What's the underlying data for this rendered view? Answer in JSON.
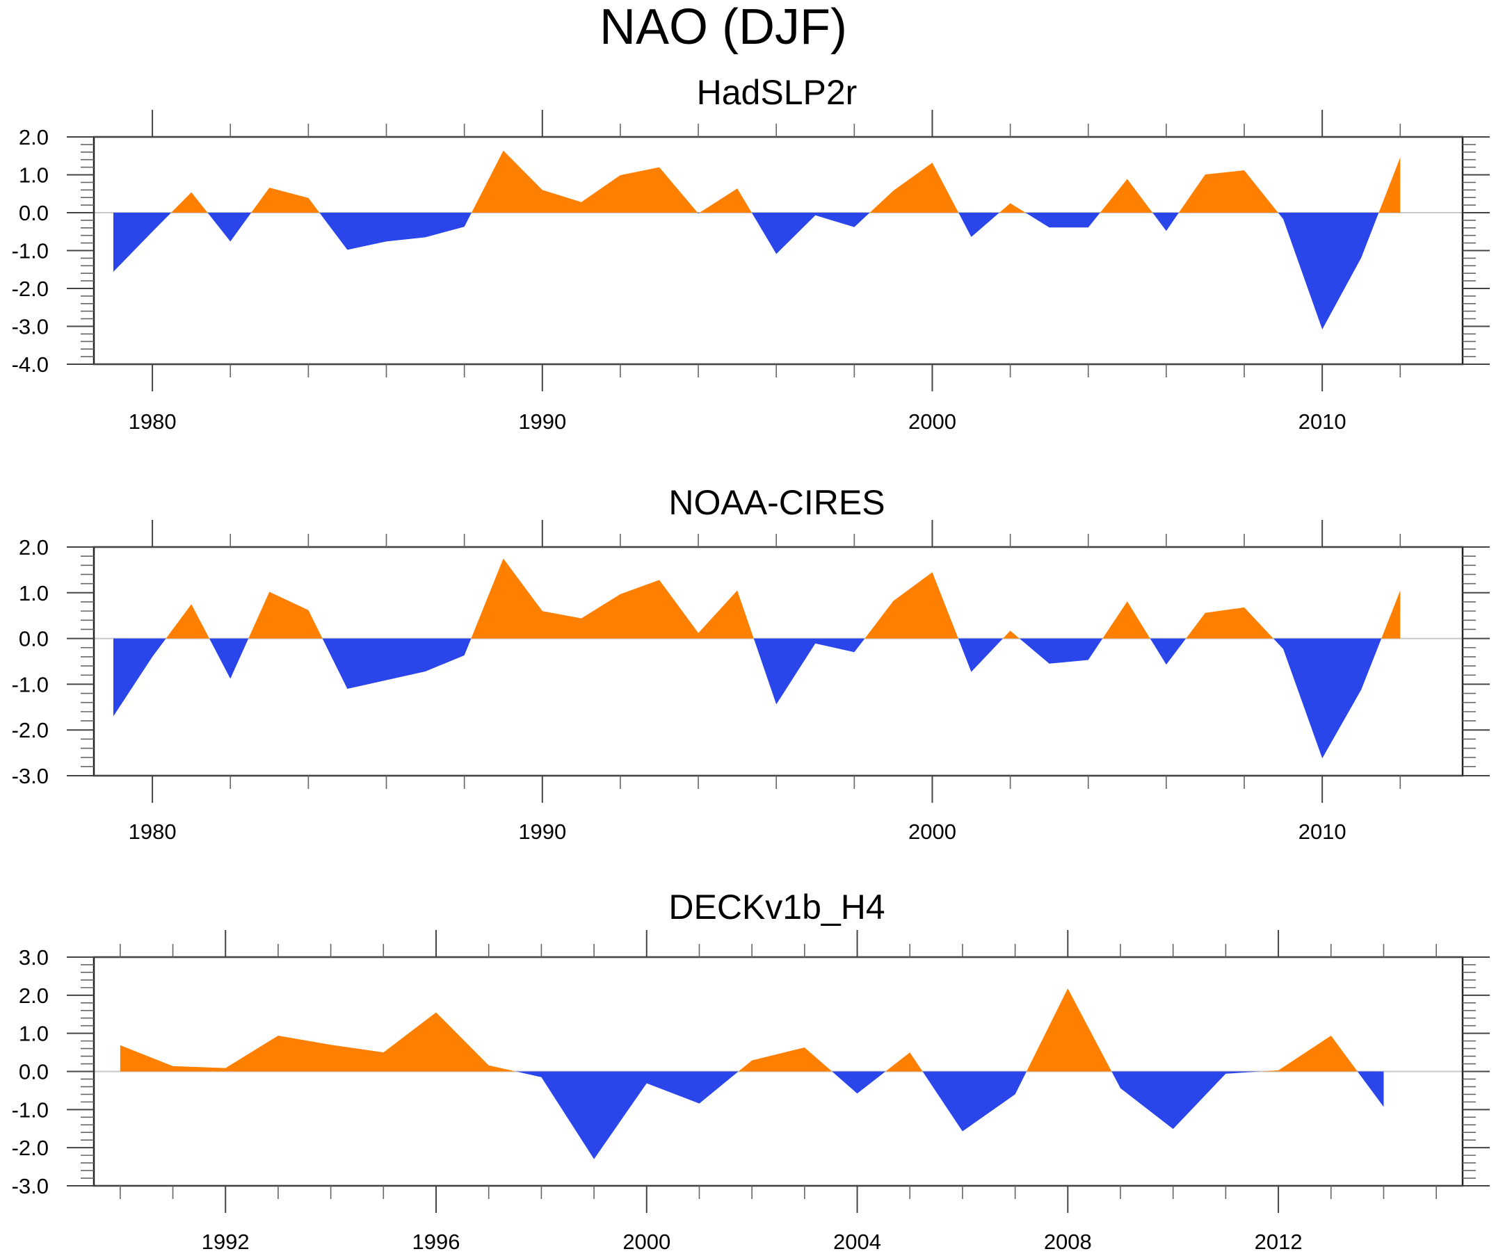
{
  "title": "NAO (DJF)",
  "colors": {
    "positive": "#FF8000",
    "negative": "#2A45EA"
  },
  "chart_data": [
    {
      "type": "area",
      "title": "HadSLP2r",
      "xlabel": "",
      "ylabel": "",
      "xlim": [
        1978.5,
        2013.6
      ],
      "ylim": [
        -4.0,
        2.0
      ],
      "yticks": [
        -4.0,
        -3.0,
        -2.0,
        -1.0,
        0.0,
        1.0,
        2.0
      ],
      "ytick_labels": [
        "-4.0",
        "-3.0",
        "-2.0",
        "-1.0",
        "0.0",
        "1.0",
        "2.0"
      ],
      "y_minor_step": 0.2,
      "xticks_major": [
        1980,
        1990,
        2000,
        2010
      ],
      "xtick_labels": [
        "1980",
        "1990",
        "2000",
        "2010"
      ],
      "x_minor_step": 2,
      "fill_above_zero": "positive",
      "fill_below_zero": "negative",
      "x": [
        1979,
        1980,
        1981,
        1982,
        1983,
        1984,
        1985,
        1986,
        1987,
        1988,
        1989,
        1990,
        1991,
        1992,
        1993,
        1994,
        1995,
        1996,
        1997,
        1998,
        1999,
        2000,
        2001,
        2002,
        2003,
        2004,
        2005,
        2006,
        2007,
        2008,
        2009,
        2010,
        2011,
        2012
      ],
      "values": [
        -1.56,
        -0.5,
        0.54,
        -0.76,
        0.66,
        0.39,
        -0.98,
        -0.76,
        -0.65,
        -0.37,
        1.64,
        0.6,
        0.28,
        0.99,
        1.2,
        -0.02,
        0.64,
        -1.09,
        -0.07,
        -0.38,
        0.58,
        1.32,
        -0.64,
        0.25,
        -0.39,
        -0.39,
        0.89,
        -0.48,
        1.01,
        1.12,
        -0.17,
        -3.08,
        -1.19,
        1.46
      ]
    },
    {
      "type": "area",
      "title": "NOAA-CIRES",
      "xlabel": "",
      "ylabel": "",
      "xlim": [
        1978.5,
        2013.6
      ],
      "ylim": [
        -3.0,
        2.0
      ],
      "yticks": [
        -3.0,
        -2.0,
        -1.0,
        0.0,
        1.0,
        2.0
      ],
      "ytick_labels": [
        "-3.0",
        "-2.0",
        "-1.0",
        "0.0",
        "1.0",
        "2.0"
      ],
      "y_minor_step": 0.2,
      "xticks_major": [
        1980,
        1990,
        2000,
        2010
      ],
      "xtick_labels": [
        "1980",
        "1990",
        "2000",
        "2010"
      ],
      "x_minor_step": 2,
      "fill_above_zero": "positive",
      "fill_below_zero": "negative",
      "x": [
        1979,
        1980,
        1981,
        1982,
        1983,
        1984,
        1985,
        1986,
        1987,
        1988,
        1989,
        1990,
        1991,
        1992,
        1993,
        1994,
        1995,
        1996,
        1997,
        1998,
        1999,
        2000,
        2001,
        2002,
        2003,
        2004,
        2005,
        2006,
        2007,
        2008,
        2009,
        2010,
        2011,
        2012
      ],
      "values": [
        -1.7,
        -0.4,
        0.75,
        -0.88,
        1.02,
        0.62,
        -1.1,
        -0.91,
        -0.72,
        -0.37,
        1.75,
        0.6,
        0.44,
        0.97,
        1.28,
        0.12,
        1.05,
        -1.44,
        -0.11,
        -0.3,
        0.82,
        1.45,
        -0.73,
        0.17,
        -0.55,
        -0.47,
        0.81,
        -0.57,
        0.56,
        0.68,
        -0.23,
        -2.62,
        -1.12,
        1.05
      ]
    },
    {
      "type": "area",
      "title": "DECKv1b_H4",
      "xlabel": "",
      "ylabel": "",
      "xlim": [
        1989.5,
        2015.5
      ],
      "ylim": [
        -3.0,
        3.0
      ],
      "yticks": [
        -3.0,
        -2.0,
        -1.0,
        0.0,
        1.0,
        2.0,
        3.0
      ],
      "ytick_labels": [
        "-3.0",
        "-2.0",
        "-1.0",
        "0.0",
        "1.0",
        "2.0",
        "3.0"
      ],
      "y_minor_step": 0.2,
      "xticks_major": [
        1992,
        1996,
        2000,
        2004,
        2008,
        2012
      ],
      "xtick_labels": [
        "1992",
        "1996",
        "2000",
        "2004",
        "2008",
        "2012"
      ],
      "x_minor_step": 1,
      "fill_above_zero": "positive",
      "fill_below_zero": "negative",
      "x": [
        1990,
        1991,
        1992,
        1993,
        1994,
        1995,
        1996,
        1997,
        1998,
        1999,
        2000,
        2001,
        2002,
        2003,
        2004,
        2005,
        2006,
        2007,
        2008,
        2009,
        2010,
        2011,
        2012,
        2013,
        2014
      ],
      "values": [
        0.69,
        0.14,
        0.09,
        0.94,
        0.7,
        0.5,
        1.55,
        0.16,
        -0.15,
        -2.3,
        -0.31,
        -0.84,
        0.29,
        0.63,
        -0.58,
        0.5,
        -1.57,
        -0.6,
        2.18,
        -0.44,
        -1.51,
        -0.06,
        0.03,
        0.94,
        -0.93
      ]
    }
  ]
}
